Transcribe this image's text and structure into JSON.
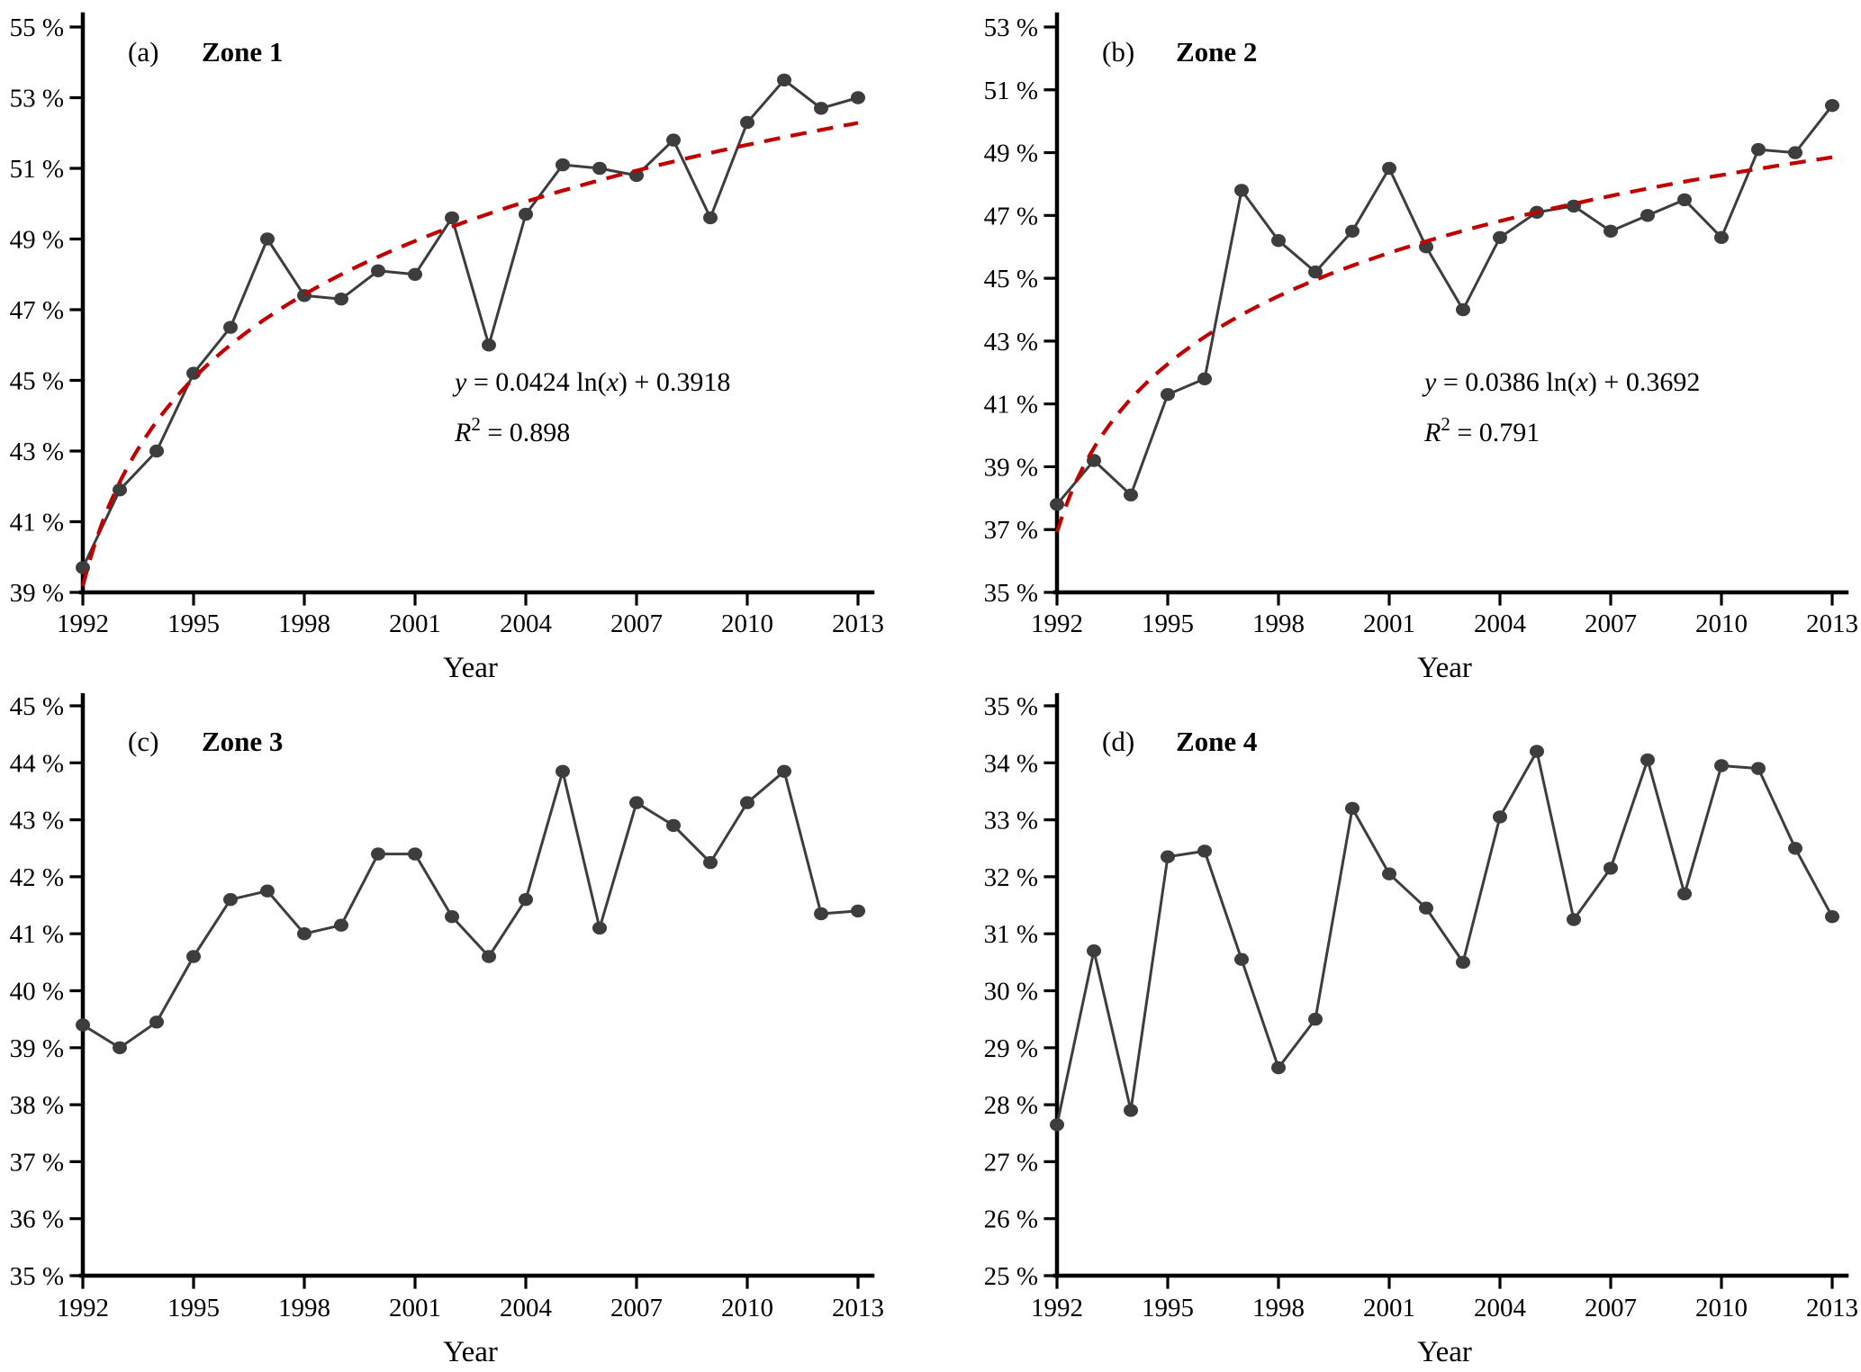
{
  "figure": {
    "background": "#ffffff"
  },
  "colors": {
    "series": "#3d3d3d",
    "trendline": "#c00000",
    "axis": "#000000"
  },
  "chart_data": [
    {
      "id": "a",
      "type": "line",
      "panel_label": "(a)",
      "title": "Zone 1",
      "xlabel": "Year",
      "ylim": [
        39,
        55
      ],
      "ytick_step": 2,
      "ytick_suffix": " %",
      "x_ticks": [
        1992,
        1995,
        1998,
        2001,
        2004,
        2007,
        2010,
        2013
      ],
      "x": [
        1992,
        1993,
        1994,
        1995,
        1996,
        1997,
        1998,
        1999,
        2000,
        2001,
        2002,
        2003,
        2004,
        2005,
        2006,
        2007,
        2008,
        2009,
        2010,
        2011,
        2012,
        2013
      ],
      "values": [
        39.7,
        41.9,
        43.0,
        45.2,
        46.5,
        49.0,
        47.4,
        47.3,
        48.1,
        48.0,
        49.6,
        46.0,
        49.7,
        51.1,
        51.0,
        50.8,
        51.8,
        49.6,
        52.3,
        53.5,
        52.7,
        53.0
      ],
      "grid": false,
      "legend": false,
      "trendline": {
        "type": "logarithmic",
        "slope": 0.0424,
        "intercept": 0.3918,
        "r2": 0.898,
        "equation": "y = 0.0424 ln(x) + 0.3918",
        "r2_text": "R2 = 0.898",
        "equation_tspans": [
          {
            "t": "y",
            "i": true
          },
          {
            "t": " = 0.0424 ln("
          },
          {
            "t": "x",
            "i": true
          },
          {
            "t": ") + 0.3918"
          }
        ],
        "r2_tspans": [
          {
            "t": "R",
            "i": true
          },
          {
            "t": "2",
            "sup": true
          },
          {
            "t": " = 0.898"
          }
        ]
      }
    },
    {
      "id": "b",
      "type": "line",
      "panel_label": "(b)",
      "title": "Zone 2",
      "xlabel": "Year",
      "ylim": [
        35,
        53
      ],
      "ytick_step": 2,
      "ytick_suffix": " %",
      "x_ticks": [
        1992,
        1995,
        1998,
        2001,
        2004,
        2007,
        2010,
        2013
      ],
      "x": [
        1992,
        1993,
        1994,
        1995,
        1996,
        1997,
        1998,
        1999,
        2000,
        2001,
        2002,
        2003,
        2004,
        2005,
        2006,
        2007,
        2008,
        2009,
        2010,
        2011,
        2012,
        2013
      ],
      "values": [
        37.8,
        39.2,
        38.1,
        41.3,
        41.8,
        47.8,
        46.2,
        45.2,
        46.5,
        48.5,
        46.0,
        44.0,
        46.3,
        47.1,
        47.3,
        46.5,
        47.0,
        47.5,
        46.3,
        49.1,
        49.0,
        50.5
      ],
      "grid": false,
      "legend": false,
      "trendline": {
        "type": "logarithmic",
        "slope": 0.0386,
        "intercept": 0.3692,
        "r2": 0.791,
        "equation": "y = 0.0386 ln(x) + 0.3692",
        "r2_text": "R2 = 0.791",
        "equation_tspans": [
          {
            "t": "y",
            "i": true
          },
          {
            "t": " = 0.0386 ln("
          },
          {
            "t": "x",
            "i": true
          },
          {
            "t": ") + 0.3692"
          }
        ],
        "r2_tspans": [
          {
            "t": "R",
            "i": true
          },
          {
            "t": "2",
            "sup": true
          },
          {
            "t": " = 0.791"
          }
        ]
      }
    },
    {
      "id": "c",
      "type": "line",
      "panel_label": "(c)",
      "title": "Zone 3",
      "xlabel": "Year",
      "ylim": [
        35,
        45
      ],
      "ytick_step": 1,
      "ytick_suffix": " %",
      "x_ticks": [
        1992,
        1995,
        1998,
        2001,
        2004,
        2007,
        2010,
        2013
      ],
      "x": [
        1992,
        1993,
        1994,
        1995,
        1996,
        1997,
        1998,
        1999,
        2000,
        2001,
        2002,
        2003,
        2004,
        2005,
        2006,
        2007,
        2008,
        2009,
        2010,
        2011,
        2012,
        2013
      ],
      "values": [
        39.4,
        39.0,
        39.45,
        40.6,
        41.6,
        41.75,
        41.0,
        41.15,
        42.4,
        42.4,
        41.3,
        40.6,
        41.6,
        43.85,
        41.1,
        43.3,
        42.9,
        42.25,
        43.3,
        43.85,
        41.35,
        41.4
      ],
      "grid": false,
      "legend": false,
      "trendline": null
    },
    {
      "id": "d",
      "type": "line",
      "panel_label": "(d)",
      "title": "Zone 4",
      "xlabel": "Year",
      "ylim": [
        25,
        35
      ],
      "ytick_step": 1,
      "ytick_suffix": " %",
      "x_ticks": [
        1992,
        1995,
        1998,
        2001,
        2004,
        2007,
        2010,
        2013
      ],
      "x": [
        1992,
        1993,
        1994,
        1995,
        1996,
        1997,
        1998,
        1999,
        2000,
        2001,
        2002,
        2003,
        2004,
        2005,
        2006,
        2007,
        2008,
        2009,
        2010,
        2011,
        2012,
        2013
      ],
      "values": [
        27.65,
        30.7,
        27.9,
        32.35,
        32.45,
        30.55,
        28.65,
        29.5,
        33.2,
        32.05,
        31.45,
        30.5,
        33.05,
        34.2,
        31.25,
        32.15,
        34.05,
        31.7,
        33.95,
        33.9,
        32.5,
        31.3
      ],
      "grid": false,
      "legend": false,
      "trendline": null
    }
  ]
}
